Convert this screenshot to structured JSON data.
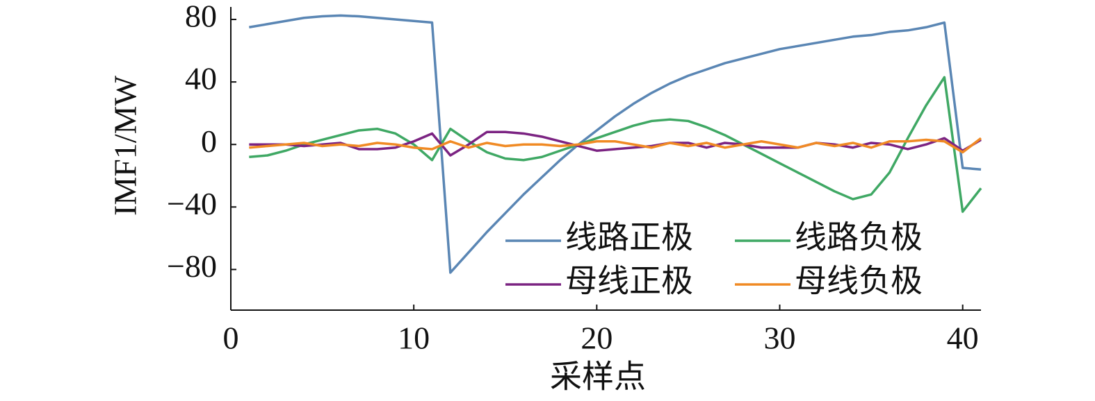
{
  "chart_data": {
    "type": "line",
    "x_label": "采样点",
    "y_label": "IMF1/MW",
    "x": [
      1,
      2,
      3,
      4,
      5,
      6,
      7,
      8,
      9,
      10,
      11,
      12,
      13,
      14,
      15,
      16,
      17,
      18,
      19,
      20,
      21,
      22,
      23,
      24,
      25,
      26,
      27,
      28,
      29,
      30,
      31,
      32,
      33,
      34,
      35,
      36,
      37,
      38,
      39,
      40,
      41
    ],
    "series": [
      {
        "name": "线路正极",
        "color": "#5a86b4",
        "values": [
          75,
          77,
          79,
          81,
          82,
          82.5,
          82,
          81,
          80,
          79,
          78,
          -82,
          -69,
          -56,
          -44,
          -32,
          -21,
          -10,
          0,
          9,
          18,
          26,
          33,
          39,
          44,
          48,
          52,
          55,
          58,
          61,
          63,
          65,
          67,
          69,
          70,
          72,
          73,
          75,
          78,
          -15,
          -16
        ]
      },
      {
        "name": "线路负极",
        "color": "#3fa864",
        "values": [
          -8,
          -7,
          -4,
          0,
          3,
          6,
          9,
          10,
          7,
          0,
          -10,
          10,
          2,
          -5,
          -9,
          -10,
          -8,
          -4,
          0,
          4,
          8,
          12,
          15,
          16,
          15,
          11,
          6,
          0,
          -6,
          -12,
          -18,
          -24,
          -30,
          -35,
          -32,
          -18,
          4,
          25,
          43,
          -43,
          -28
        ]
      },
      {
        "name": "母线正极",
        "color": "#7b2382",
        "values": [
          0,
          0,
          0,
          -1,
          0,
          1,
          -3,
          -3,
          -2,
          2,
          7,
          -7,
          0,
          8,
          8,
          7,
          5,
          2,
          -1,
          -4,
          -3,
          -2,
          -1,
          1,
          1,
          -2,
          1,
          0,
          -2,
          -2,
          -2,
          1,
          0,
          -2,
          1,
          0,
          -3,
          0,
          4,
          -4,
          3
        ]
      },
      {
        "name": "母线负极",
        "color": "#f08a24",
        "values": [
          -2,
          -1,
          0,
          1,
          -1,
          0,
          -1,
          1,
          0,
          -2,
          -3,
          2,
          -2,
          1,
          -1,
          0,
          0,
          -1,
          0,
          2,
          2,
          0,
          -2,
          1,
          -1,
          1,
          -2,
          0,
          2,
          0,
          -2,
          1,
          -1,
          1,
          -2,
          2,
          2,
          3,
          2,
          -5,
          4
        ]
      }
    ],
    "xlim": [
      0,
      41
    ],
    "xticks": [
      0,
      10,
      20,
      30,
      40
    ],
    "ylim": [
      -106,
      88
    ],
    "yticks": [
      {
        "value": -80,
        "label": "−80"
      },
      {
        "value": -40,
        "label": "−40"
      },
      0,
      40,
      80
    ],
    "grid": false,
    "legend": "lower right"
  }
}
